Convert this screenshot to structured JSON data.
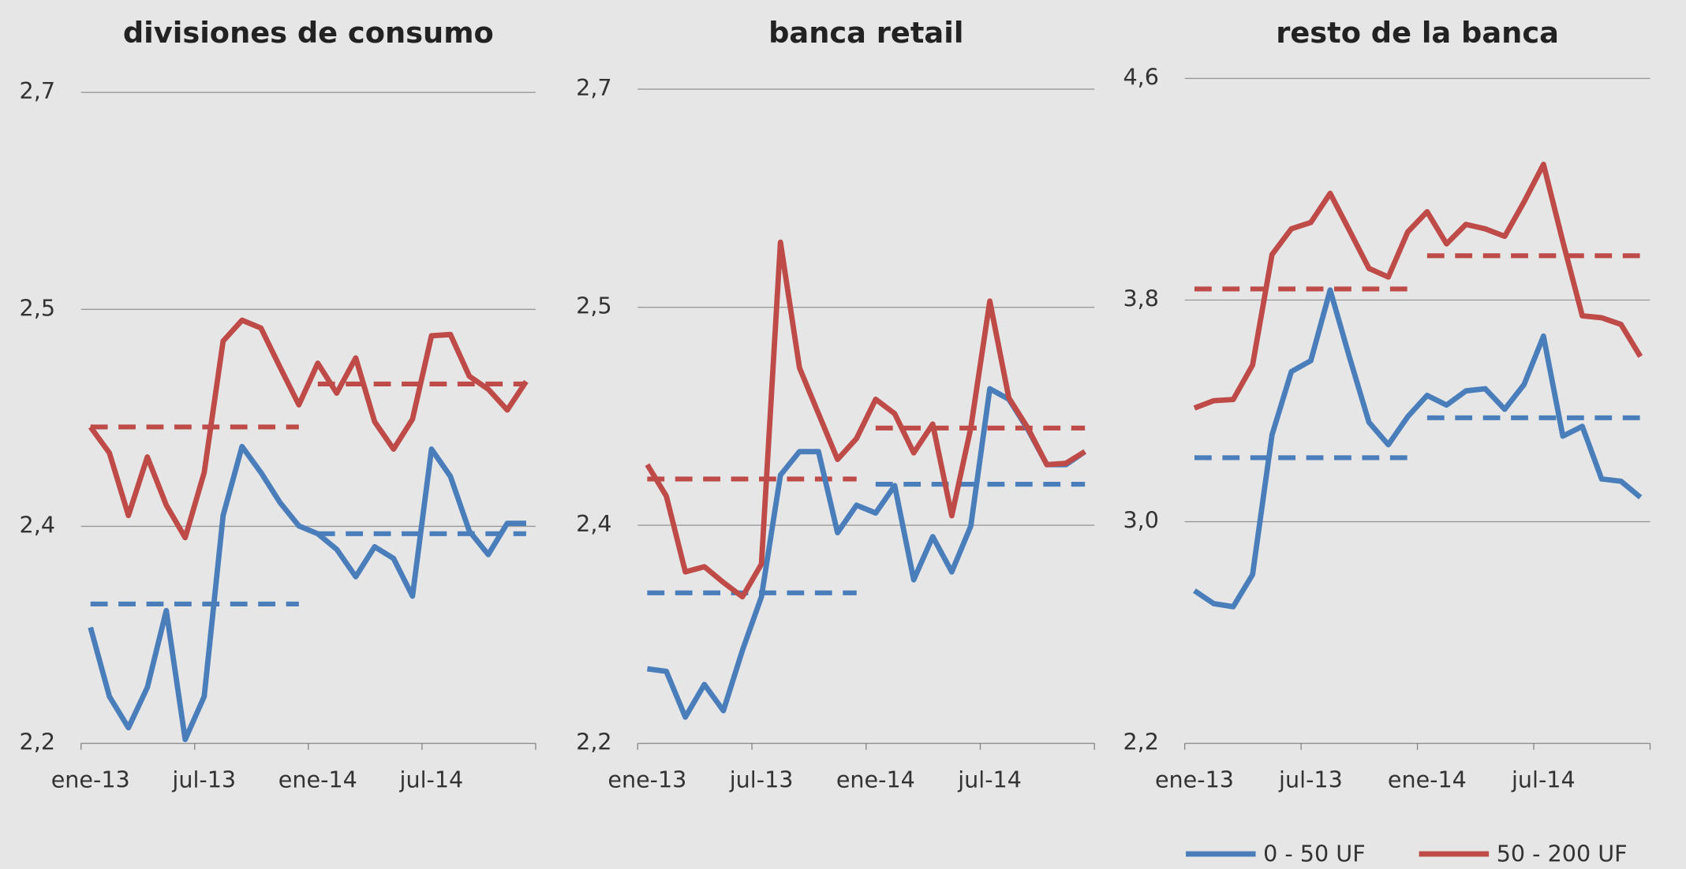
{
  "chart_data": [
    {
      "type": "line",
      "title": "divisiones de consumo",
      "categories": [
        "ene-13",
        null,
        null,
        null,
        null,
        null,
        "jul-13",
        null,
        null,
        null,
        null,
        null,
        "ene-14",
        null,
        null,
        null,
        null,
        null,
        "jul-14",
        null,
        null,
        null,
        null,
        null
      ],
      "series": [
        {
          "color": "#4a7ebb",
          "values": [
            2.289,
            2.236,
            2.212,
            2.243,
            2.302,
            2.203,
            2.236,
            2.375,
            2.428,
            2.408,
            2.385,
            2.367,
            2.361,
            2.349,
            2.328,
            2.351,
            2.342,
            2.313,
            2.426,
            2.405,
            2.363,
            2.345,
            2.369,
            2.369
          ]
        },
        {
          "color": "#be4b48",
          "values": [
            2.443,
            2.423,
            2.375,
            2.42,
            2.383,
            2.358,
            2.408,
            2.509,
            2.525,
            2.519,
            2.489,
            2.46,
            2.492,
            2.469,
            2.496,
            2.447,
            2.426,
            2.449,
            2.513,
            2.514,
            2.482,
            2.472,
            2.456,
            2.478
          ]
        }
      ],
      "averages": [
        {
          "color": "#4a7ebb",
          "values": [
            2.307,
            2.361
          ]
        },
        {
          "color": "#be4b48",
          "values": [
            2.443,
            2.476
          ]
        }
      ],
      "ylim": [
        2.2,
        2.7
      ],
      "yticks": [
        {
          "value": 2.2,
          "label": "2,2"
        },
        {
          "value": 2.3667,
          "label": "2,4"
        },
        {
          "value": 2.5333,
          "label": "2,5"
        },
        {
          "value": 2.7,
          "label": "2,7"
        }
      ],
      "grid": true
    },
    {
      "type": "line",
      "title": "banca retail",
      "categories": [
        "ene-13",
        null,
        null,
        null,
        null,
        null,
        "jul-13",
        null,
        null,
        null,
        null,
        null,
        "ene-14",
        null,
        null,
        null,
        null,
        null,
        "jul-14",
        null,
        null,
        null,
        null,
        null
      ],
      "series": [
        {
          "color": "#4a7ebb",
          "values": [
            2.257,
            2.255,
            2.22,
            2.245,
            2.225,
            2.271,
            2.312,
            2.405,
            2.423,
            2.423,
            2.361,
            2.382,
            2.376,
            2.397,
            2.325,
            2.358,
            2.331,
            2.366,
            2.471,
            2.463,
            2.44,
            2.413,
            2.413,
            2.423
          ]
        },
        {
          "color": "#be4b48",
          "values": [
            2.413,
            2.389,
            2.331,
            2.335,
            2.323,
            2.312,
            2.337,
            2.583,
            2.487,
            2.452,
            2.417,
            2.433,
            2.463,
            2.452,
            2.422,
            2.444,
            2.374,
            2.441,
            2.538,
            2.464,
            2.441,
            2.413,
            2.414,
            2.423
          ]
        }
      ],
      "averages": [
        {
          "color": "#4a7ebb",
          "values": [
            2.315,
            2.398
          ]
        },
        {
          "color": "#be4b48",
          "values": [
            2.402,
            2.441
          ]
        }
      ],
      "ylim": [
        2.2,
        2.7
      ],
      "yticks": [
        {
          "value": 2.2,
          "label": "2,2"
        },
        {
          "value": 2.3667,
          "label": "2,4"
        },
        {
          "value": 2.5333,
          "label": "2,5"
        },
        {
          "value": 2.7,
          "label": "2,7"
        }
      ],
      "grid": true
    },
    {
      "type": "line",
      "title": "resto de la banca",
      "categories": [
        "ene-13",
        null,
        null,
        null,
        null,
        null,
        "jul-13",
        null,
        null,
        null,
        null,
        null,
        "ene-14",
        null,
        null,
        null,
        null,
        null,
        "jul-14",
        null,
        null,
        null,
        null,
        null
      ],
      "series": [
        {
          "name": "0 - 50 UF",
          "color": "#4a7ebb",
          "values": [
            2.751,
            2.704,
            2.693,
            2.809,
            3.313,
            3.542,
            3.581,
            3.836,
            3.592,
            3.359,
            3.278,
            3.379,
            3.456,
            3.421,
            3.472,
            3.48,
            3.406,
            3.495,
            3.67,
            3.309,
            3.344,
            3.154,
            3.146,
            3.088
          ]
        },
        {
          "name": "50 - 200 UF",
          "color": "#be4b48",
          "values": [
            3.41,
            3.437,
            3.441,
            3.565,
            3.964,
            4.057,
            4.08,
            4.185,
            4.05,
            3.914,
            3.883,
            4.046,
            4.119,
            4.003,
            4.073,
            4.057,
            4.03,
            4.154,
            4.29,
            4.011,
            3.743,
            3.736,
            3.712,
            3.596
          ]
        }
      ],
      "averages": [
        {
          "color": "#4a7ebb",
          "values": [
            3.231,
            3.375
          ]
        },
        {
          "color": "#be4b48",
          "values": [
            3.84,
            3.96
          ]
        }
      ],
      "ylim": [
        2.2,
        4.6
      ],
      "yticks": [
        {
          "value": 2.2,
          "label": "2,2"
        },
        {
          "value": 3.0,
          "label": "3,0"
        },
        {
          "value": 3.8,
          "label": "3,8"
        },
        {
          "value": 4.6,
          "label": "4,6"
        }
      ],
      "grid": true
    }
  ]
}
